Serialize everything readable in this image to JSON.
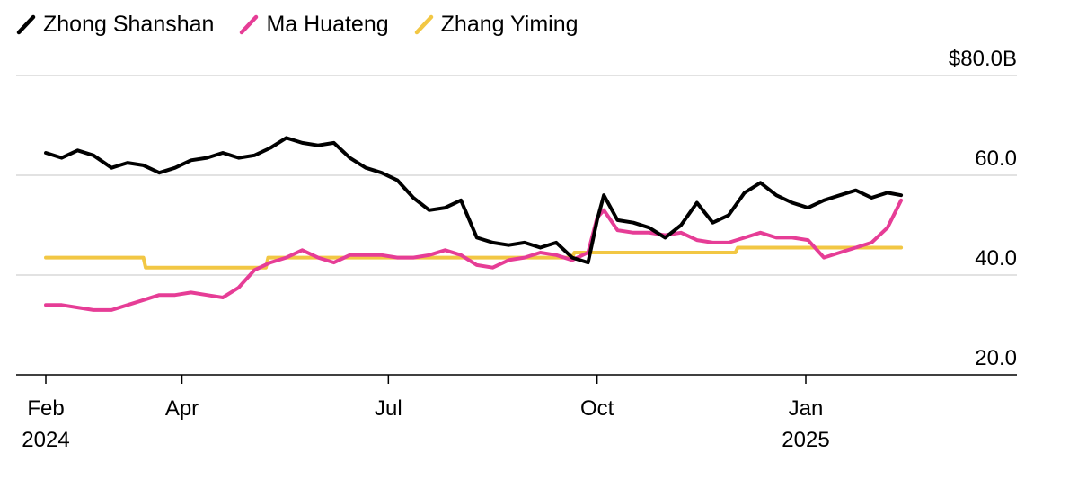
{
  "chart_data": {
    "type": "line",
    "title": "",
    "xlabel": "",
    "ylabel": "",
    "ylim": [
      20,
      80
    ],
    "y_ticks": [
      {
        "value": 80,
        "label": "$80.0B"
      },
      {
        "value": 60,
        "label": "60.0"
      },
      {
        "value": 40,
        "label": "40.0"
      },
      {
        "value": 20,
        "label": "20.0"
      }
    ],
    "x_range": [
      "2024-01-25",
      "2025-03-31"
    ],
    "x_ticks": [
      {
        "date": "2024-02-01",
        "label": "Feb",
        "year": "2024"
      },
      {
        "date": "2024-04-01",
        "label": "Apr",
        "year": ""
      },
      {
        "date": "2024-07-01",
        "label": "Jul",
        "year": ""
      },
      {
        "date": "2024-10-01",
        "label": "Oct",
        "year": ""
      },
      {
        "date": "2025-01-01",
        "label": "Jan",
        "year": "2025"
      }
    ],
    "legend_position": "top-left",
    "grid": true,
    "series": [
      {
        "name": "Zhong Shanshan",
        "color": "#000000",
        "points": [
          [
            "2024-02-01",
            64.5
          ],
          [
            "2024-02-08",
            63.5
          ],
          [
            "2024-02-15",
            65.0
          ],
          [
            "2024-02-22",
            64.0
          ],
          [
            "2024-03-01",
            61.5
          ],
          [
            "2024-03-08",
            62.5
          ],
          [
            "2024-03-15",
            62.0
          ],
          [
            "2024-03-22",
            60.5
          ],
          [
            "2024-03-29",
            61.5
          ],
          [
            "2024-04-05",
            63.0
          ],
          [
            "2024-04-12",
            63.5
          ],
          [
            "2024-04-19",
            64.5
          ],
          [
            "2024-04-26",
            63.5
          ],
          [
            "2024-05-03",
            64.0
          ],
          [
            "2024-05-10",
            65.5
          ],
          [
            "2024-05-17",
            67.5
          ],
          [
            "2024-05-24",
            66.5
          ],
          [
            "2024-05-31",
            66.0
          ],
          [
            "2024-06-07",
            66.5
          ],
          [
            "2024-06-14",
            63.5
          ],
          [
            "2024-06-21",
            61.5
          ],
          [
            "2024-06-28",
            60.5
          ],
          [
            "2024-07-05",
            59.0
          ],
          [
            "2024-07-12",
            55.5
          ],
          [
            "2024-07-19",
            53.0
          ],
          [
            "2024-07-26",
            53.5
          ],
          [
            "2024-08-02",
            55.0
          ],
          [
            "2024-08-09",
            47.5
          ],
          [
            "2024-08-16",
            46.5
          ],
          [
            "2024-08-23",
            46.0
          ],
          [
            "2024-08-30",
            46.5
          ],
          [
            "2024-09-06",
            45.5
          ],
          [
            "2024-09-13",
            46.5
          ],
          [
            "2024-09-20",
            43.5
          ],
          [
            "2024-09-27",
            42.5
          ],
          [
            "2024-10-01",
            51.0
          ],
          [
            "2024-10-04",
            56.0
          ],
          [
            "2024-10-10",
            51.0
          ],
          [
            "2024-10-17",
            50.5
          ],
          [
            "2024-10-24",
            49.5
          ],
          [
            "2024-10-31",
            47.5
          ],
          [
            "2024-11-07",
            50.0
          ],
          [
            "2024-11-14",
            54.5
          ],
          [
            "2024-11-21",
            50.5
          ],
          [
            "2024-11-28",
            52.0
          ],
          [
            "2024-12-05",
            56.5
          ],
          [
            "2024-12-12",
            58.5
          ],
          [
            "2024-12-19",
            56.0
          ],
          [
            "2024-12-26",
            54.5
          ],
          [
            "2025-01-02",
            53.5
          ],
          [
            "2025-01-09",
            55.0
          ],
          [
            "2025-01-16",
            56.0
          ],
          [
            "2025-01-23",
            57.0
          ],
          [
            "2025-01-30",
            55.5
          ],
          [
            "2025-02-06",
            56.5
          ],
          [
            "2025-02-12",
            56.0
          ]
        ]
      },
      {
        "name": "Ma Huateng",
        "color": "#e63d96",
        "points": [
          [
            "2024-02-01",
            34.0
          ],
          [
            "2024-02-08",
            34.0
          ],
          [
            "2024-02-15",
            33.5
          ],
          [
            "2024-02-22",
            33.0
          ],
          [
            "2024-03-01",
            33.0
          ],
          [
            "2024-03-08",
            34.0
          ],
          [
            "2024-03-15",
            35.0
          ],
          [
            "2024-03-22",
            36.0
          ],
          [
            "2024-03-29",
            36.0
          ],
          [
            "2024-04-05",
            36.5
          ],
          [
            "2024-04-12",
            36.0
          ],
          [
            "2024-04-19",
            35.5
          ],
          [
            "2024-04-26",
            37.5
          ],
          [
            "2024-05-03",
            41.0
          ],
          [
            "2024-05-10",
            42.5
          ],
          [
            "2024-05-17",
            43.5
          ],
          [
            "2024-05-24",
            45.0
          ],
          [
            "2024-05-31",
            43.5
          ],
          [
            "2024-06-07",
            42.5
          ],
          [
            "2024-06-14",
            44.0
          ],
          [
            "2024-06-21",
            44.0
          ],
          [
            "2024-06-28",
            44.0
          ],
          [
            "2024-07-05",
            43.5
          ],
          [
            "2024-07-12",
            43.5
          ],
          [
            "2024-07-19",
            44.0
          ],
          [
            "2024-07-26",
            45.0
          ],
          [
            "2024-08-02",
            44.0
          ],
          [
            "2024-08-09",
            42.0
          ],
          [
            "2024-08-16",
            41.5
          ],
          [
            "2024-08-23",
            43.0
          ],
          [
            "2024-08-30",
            43.5
          ],
          [
            "2024-09-06",
            44.5
          ],
          [
            "2024-09-13",
            44.0
          ],
          [
            "2024-09-20",
            43.0
          ],
          [
            "2024-09-27",
            44.5
          ],
          [
            "2024-10-01",
            51.5
          ],
          [
            "2024-10-04",
            53.0
          ],
          [
            "2024-10-10",
            49.0
          ],
          [
            "2024-10-17",
            48.5
          ],
          [
            "2024-10-24",
            48.5
          ],
          [
            "2024-10-31",
            48.0
          ],
          [
            "2024-11-07",
            48.5
          ],
          [
            "2024-11-14",
            47.0
          ],
          [
            "2024-11-21",
            46.5
          ],
          [
            "2024-11-28",
            46.5
          ],
          [
            "2024-12-05",
            47.5
          ],
          [
            "2024-12-12",
            48.5
          ],
          [
            "2024-12-19",
            47.5
          ],
          [
            "2024-12-26",
            47.5
          ],
          [
            "2025-01-02",
            47.0
          ],
          [
            "2025-01-09",
            43.5
          ],
          [
            "2025-01-16",
            44.5
          ],
          [
            "2025-01-23",
            45.5
          ],
          [
            "2025-01-30",
            46.5
          ],
          [
            "2025-02-06",
            49.5
          ],
          [
            "2025-02-12",
            55.0
          ]
        ]
      },
      {
        "name": "Zhang Yiming",
        "color": "#f2c744",
        "points": [
          [
            "2024-02-01",
            43.5
          ],
          [
            "2024-03-15",
            43.5
          ],
          [
            "2024-03-16",
            41.5
          ],
          [
            "2024-05-08",
            41.5
          ],
          [
            "2024-05-09",
            43.5
          ],
          [
            "2024-09-20",
            43.5
          ],
          [
            "2024-09-21",
            44.5
          ],
          [
            "2024-12-01",
            44.5
          ],
          [
            "2024-12-02",
            45.5
          ],
          [
            "2025-02-12",
            45.5
          ]
        ]
      }
    ]
  }
}
